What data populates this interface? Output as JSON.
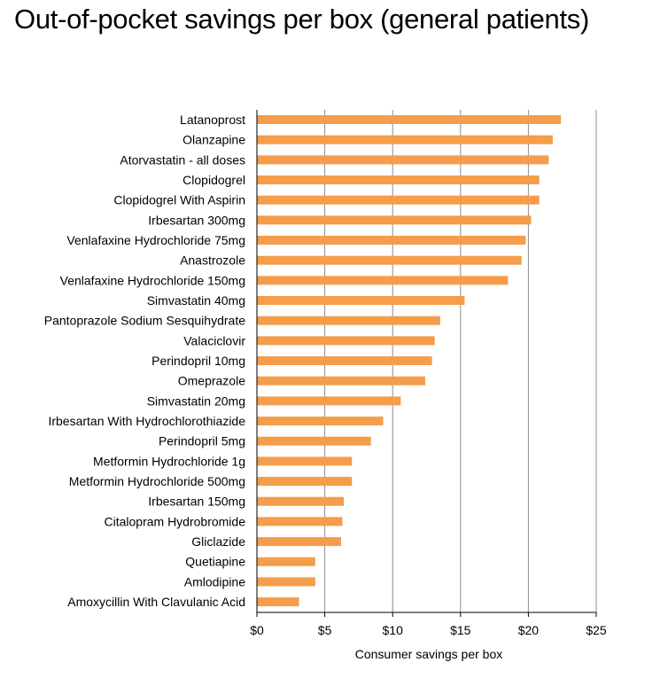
{
  "chart_data": {
    "type": "bar",
    "orientation": "horizontal",
    "title": "Out-of-pocket savings per box (general patients)",
    "xlabel": "Consumer savings per box",
    "ylabel": "",
    "xlim": [
      0,
      25
    ],
    "x_ticks": [
      0,
      5,
      10,
      15,
      20,
      25
    ],
    "x_tick_labels": [
      "$0",
      "$5",
      "$10",
      "$15",
      "$20",
      "$25"
    ],
    "grid": "vertical",
    "legend": "none",
    "bar_color": "#f59d4a",
    "grid_color": "#8c8c8c",
    "categories": [
      "Latanoprost",
      "Olanzapine",
      "Atorvastatin - all doses",
      "Clopidogrel",
      "Clopidogrel With Aspirin",
      "Irbesartan 300mg",
      "Venlafaxine Hydrochloride 75mg",
      "Anastrozole",
      "Venlafaxine Hydrochloride 150mg",
      "Simvastatin 40mg",
      "Pantoprazole Sodium Sesquihydrate",
      "Valaciclovir",
      "Perindopril 10mg",
      "Omeprazole",
      "Simvastatin 20mg",
      "Irbesartan With Hydrochlorothiazide",
      "Perindopril 5mg",
      "Metformin Hydrochloride 1g",
      "Metformin Hydrochloride 500mg",
      "Irbesartan 150mg",
      "Citalopram Hydrobromide",
      "Gliclazide",
      "Quetiapine",
      "Amlodipine",
      "Amoxycillin With Clavulanic Acid"
    ],
    "values": [
      22.4,
      21.8,
      21.5,
      20.8,
      20.8,
      20.2,
      19.8,
      19.5,
      18.5,
      15.3,
      13.5,
      13.1,
      12.9,
      12.4,
      10.6,
      9.3,
      8.4,
      7.0,
      7.0,
      6.4,
      6.3,
      6.2,
      4.3,
      4.3,
      3.1
    ]
  }
}
